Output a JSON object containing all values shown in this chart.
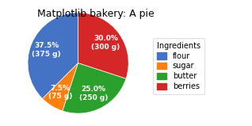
{
  "title": "Matplotlib bakery: A pie",
  "labels": [
    "flour",
    "sugar",
    "butter",
    "berries"
  ],
  "sizes": [
    375,
    75,
    250,
    300
  ],
  "grams": [
    375,
    75,
    250,
    300
  ],
  "colors": [
    "#4472c4",
    "#ff7f0e",
    "#2ca02c",
    "#d62728"
  ],
  "legend_title": "Ingredients",
  "startangle": 90,
  "title_fontsize": 9,
  "label_fontsize": 6.5,
  "legend_fontsize": 7,
  "bg_color": "#f0f0f0"
}
